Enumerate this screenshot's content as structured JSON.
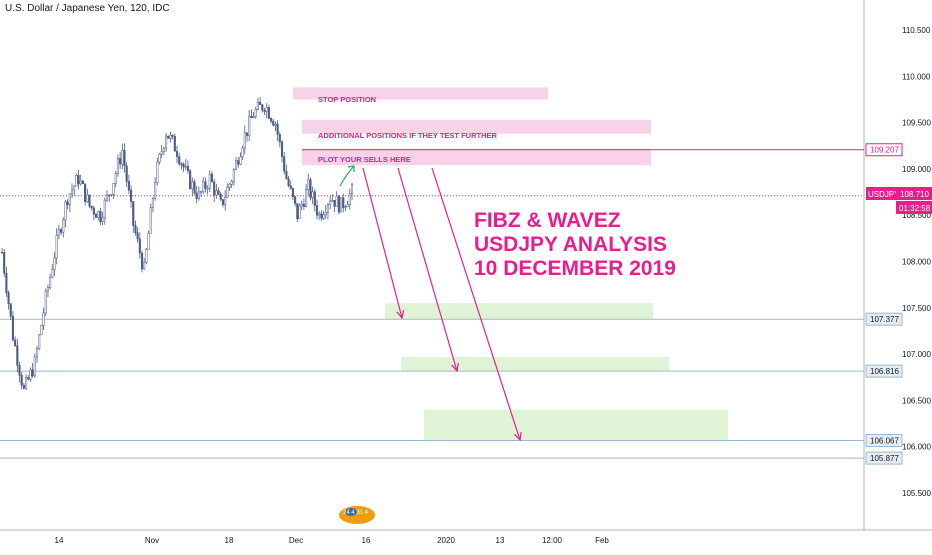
{
  "header": {
    "symbol_title": "U.S. Dollar / Japanese Yen, 120, IDC"
  },
  "overlay": {
    "title_lines": [
      "FIBZ & WAVEZ",
      "USDJPY ANALYSIS",
      "10 DECEMBER 2019"
    ]
  },
  "annotations": {
    "stop_position": "STOP POSITION",
    "additional_positions": "ADDITIONAL POSITIONS IF THEY TEST FURTHER",
    "plot_sells": "PLOT YOUR SELLS HERE"
  },
  "price_scale": {
    "ticks": [
      "110.500",
      "110.000",
      "109.500",
      "109.000",
      "108.500",
      "108.000",
      "107.500",
      "107.000",
      "106.500",
      "106.000",
      "105.500"
    ],
    "current_symbol": "USDJPY",
    "current_price": "108.710",
    "countdown": "01:32:58",
    "level_labels": [
      "109.207",
      "107.377",
      "106.816",
      "106.067",
      "105.877"
    ]
  },
  "time_scale": {
    "ticks": [
      "14",
      "Nov",
      "18",
      "Dec",
      "16",
      "2020",
      "13",
      "12:00",
      "Feb"
    ]
  },
  "colors": {
    "accent": "#e91e8c",
    "zone_pink": "#f8d3e8",
    "zone_green": "#dff3d6",
    "level_line": "#9fb9c8",
    "candle": "#4a5d86",
    "current_price": "#e91e8c"
  },
  "chart_data": {
    "type": "candlestick",
    "symbol": "USDJPY",
    "timeframe": "120",
    "ylim": [
      105.2,
      110.8
    ],
    "current_price": 108.71,
    "horizontal_levels": [
      109.207,
      107.377,
      106.816,
      106.067,
      105.877
    ],
    "zones": [
      {
        "label": "STOP POSITION",
        "low": 109.75,
        "high": 109.88,
        "color": "pink"
      },
      {
        "label": "ADDITIONAL POSITIONS IF THEY TEST FURTHER",
        "low": 109.38,
        "high": 109.53,
        "color": "pink"
      },
      {
        "label": "PLOT YOUR SELLS HERE",
        "low": 109.04,
        "high": 109.22,
        "color": "pink"
      },
      {
        "label": "",
        "low": 107.38,
        "high": 107.55,
        "color": "green"
      },
      {
        "label": "",
        "low": 106.82,
        "high": 106.97,
        "color": "green"
      },
      {
        "label": "",
        "low": 106.06,
        "high": 106.4,
        "color": "green"
      }
    ],
    "price_path": [
      {
        "t": 0,
        "p": 108.1
      },
      {
        "t": 1,
        "p": 107.2
      },
      {
        "t": 2,
        "p": 106.6
      },
      {
        "t": 3,
        "p": 106.9
      },
      {
        "t": 4,
        "p": 107.6
      },
      {
        "t": 5,
        "p": 108.2
      },
      {
        "t": 6,
        "p": 108.7
      },
      {
        "t": 7,
        "p": 108.9
      },
      {
        "t": 8,
        "p": 108.6
      },
      {
        "t": 9,
        "p": 108.5
      },
      {
        "t": 10,
        "p": 108.8
      },
      {
        "t": 11,
        "p": 109.2
      },
      {
        "t": 12,
        "p": 108.4
      },
      {
        "t": 13,
        "p": 107.9
      },
      {
        "t": 14,
        "p": 108.9
      },
      {
        "t": 15,
        "p": 109.4
      },
      {
        "t": 16,
        "p": 109.2
      },
      {
        "t": 17,
        "p": 108.9
      },
      {
        "t": 18,
        "p": 108.7
      },
      {
        "t": 19,
        "p": 108.9
      },
      {
        "t": 20,
        "p": 108.6
      },
      {
        "t": 21,
        "p": 108.9
      },
      {
        "t": 22,
        "p": 109.3
      },
      {
        "t": 23,
        "p": 109.6
      },
      {
        "t": 24,
        "p": 109.7
      },
      {
        "t": 25,
        "p": 109.5
      },
      {
        "t": 26,
        "p": 108.9
      },
      {
        "t": 27,
        "p": 108.5
      },
      {
        "t": 28,
        "p": 108.8
      },
      {
        "t": 29,
        "p": 108.5
      },
      {
        "t": 30,
        "p": 108.7
      },
      {
        "t": 31,
        "p": 108.6
      },
      {
        "t": 32,
        "p": 108.75
      }
    ],
    "x_ticks": [
      "14",
      "Nov",
      "18",
      "Dec",
      "16",
      "2020",
      "13",
      "12:00",
      "Feb"
    ],
    "y_ticks": [
      110.5,
      110.0,
      109.5,
      109.0,
      108.5,
      108.0,
      107.5,
      107.0,
      106.5,
      106.0,
      105.5
    ]
  }
}
